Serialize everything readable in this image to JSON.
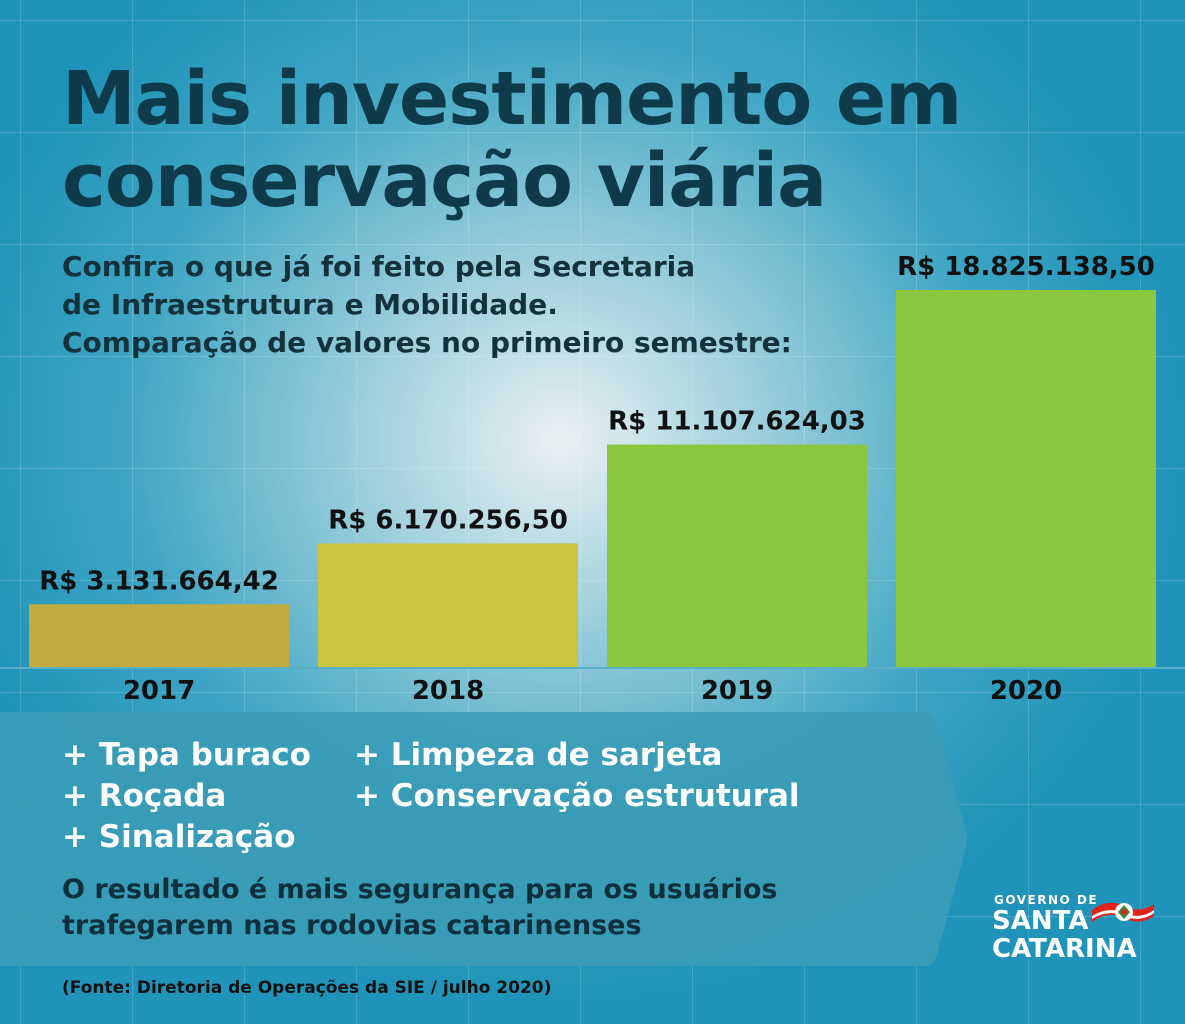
{
  "title": {
    "line1": "Mais investimento em",
    "line2": "conservação viária"
  },
  "subtitle": {
    "line1": "Confira o que já foi feito pela Secretaria",
    "line2": "de Infraestrutura e Mobilidade.",
    "line3": "Comparação de valores no primeiro semestre:"
  },
  "chart_data": {
    "type": "bar",
    "categories": [
      "2017",
      "2018",
      "2019",
      "2020"
    ],
    "values": [
      3131664.42,
      6170256.5,
      11107624.03,
      18825138.5
    ],
    "value_labels": [
      "R$ 3.131.664,42",
      "R$ 6.170.256,50",
      "R$ 11.107.624,03",
      "R$ 18.825.138,50"
    ],
    "bar_colors": [
      "#c2ab3f",
      "#c9c53f",
      "#8bc63f",
      "#8bc63f"
    ],
    "title": "",
    "xlabel": "",
    "ylabel": "",
    "ylim": [
      0,
      18825138.5
    ],
    "grid": false,
    "legend": "none"
  },
  "panel": {
    "col1": [
      "+ Tapa buraco",
      "+ Roçada",
      "+ Sinalização"
    ],
    "col2": [
      "+ Limpeza de sarjeta",
      "+ Conservação estrutural"
    ],
    "result_line1": "O resultado é mais segurança para os usuários",
    "result_line2": "trafegarem nas rodovias catarinenses",
    "color": "#3a9cb6"
  },
  "source": "(Fonte: Diretoria de Operações da SIE / julho 2020)",
  "logo": {
    "small": "GOVERNO DE",
    "line1": "SANTA",
    "line2": "CATARINA"
  }
}
